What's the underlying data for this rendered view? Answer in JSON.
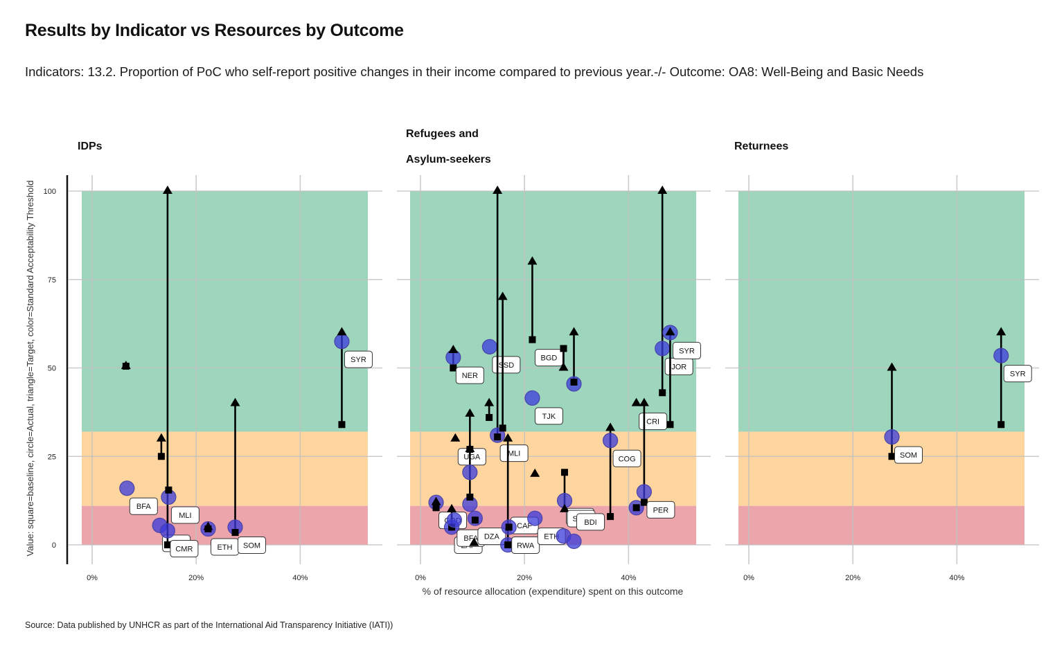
{
  "title": "Results  by Indicator  vs Resources  by Outcome",
  "subtitle": "Indicators: 13.2. Proportion of PoC who self-report positive changes in their income compared to previous year.-/- Outcome: OA8: Well-Being and Basic Needs",
  "source": "Source: Data published by UNHCR as part of the International Aid Transparency Initiative (IATI))",
  "colors": {
    "green": "#9dd6bc",
    "orange": "#fed59e",
    "red": "#eba5ab",
    "point": "#3a3adb",
    "grid": "#c2c2c2"
  },
  "chart_data": {
    "type": "scatter",
    "xlabel": "% of resource allocation (expenditure) spent on this outcome",
    "ylabel": "Value: square=baseline, circle=Actual, triangle=Target, color=Standard Acceptability Threshold",
    "xlim": [
      -2,
      53
    ],
    "ylim": [
      0,
      100
    ],
    "x_ticks": [
      0,
      20,
      40
    ],
    "x_tick_labels": [
      "0%",
      "20%",
      "40%"
    ],
    "y_ticks": [
      0,
      25,
      50,
      75,
      100
    ],
    "thresholds": {
      "red": [
        0,
        11
      ],
      "orange": [
        11,
        32
      ],
      "green": [
        32,
        100
      ]
    },
    "panels": [
      {
        "name": "IDPs",
        "title_lines": [
          "IDPs"
        ],
        "points": [
          {
            "code": "",
            "x": 6.5,
            "baseline": 50.5,
            "actual": null,
            "target": 50.5
          },
          {
            "code": "BFA",
            "x": 6.7,
            "baseline": null,
            "actual": 16,
            "target": null
          },
          {
            "code": "",
            "x": 13.3,
            "baseline": 25,
            "actual": null,
            "target": 30
          },
          {
            "code": "SSD",
            "x": 13,
            "baseline": null,
            "actual": 5.5,
            "target": null
          },
          {
            "code": "CMR",
            "x": 14.5,
            "baseline": 0,
            "actual": 4,
            "target": 100
          },
          {
            "code": "MLI",
            "x": 14.7,
            "baseline": 15.5,
            "actual": 13.5,
            "target": null
          },
          {
            "code": "ETH",
            "x": 22.3,
            "baseline": 4.5,
            "actual": 4.5,
            "target": 5
          },
          {
            "code": "SOM",
            "x": 27.5,
            "baseline": 3.5,
            "actual": 5,
            "target": 40
          },
          {
            "code": "SYR",
            "x": 48,
            "baseline": 34,
            "actual": 57.5,
            "target": 60
          }
        ]
      },
      {
        "name": "Refugees and Asylum-seekers",
        "title_lines": [
          "Refugees and",
          "Asylum-seekers"
        ],
        "points": [
          {
            "code": "COD",
            "x": 3,
            "baseline": 10.5,
            "actual": 12,
            "target": 12
          },
          {
            "code": "ZAF",
            "x": 6,
            "baseline": 5,
            "actual": 5,
            "target": 10
          },
          {
            "code": "BFA",
            "x": 6.5,
            "baseline": null,
            "actual": 7,
            "target": null
          },
          {
            "code": "UGA",
            "x": 6.7,
            "baseline": null,
            "actual": null,
            "target": 30
          },
          {
            "code": "NER",
            "x": 6.3,
            "baseline": 50,
            "actual": 53,
            "target": 55
          },
          {
            "code": "",
            "x": 9.5,
            "baseline": 13.5,
            "actual": 11.5,
            "target": 37
          },
          {
            "code": "",
            "x": 9.5,
            "baseline": 27,
            "actual": 20.5,
            "target": 27
          },
          {
            "code": "DZA",
            "x": 10.5,
            "baseline": 7,
            "actual": 7.5,
            "target": null
          },
          {
            "code": "",
            "x": 10.3,
            "baseline": null,
            "actual": null,
            "target": 0.5
          },
          {
            "code": "",
            "x": 13.2,
            "baseline": 36,
            "actual": null,
            "target": 40
          },
          {
            "code": "SSD",
            "x": 13.3,
            "baseline": null,
            "actual": 56,
            "target": null
          },
          {
            "code": "MLI",
            "x": 14.8,
            "baseline": 30.5,
            "actual": 31,
            "target": 100
          },
          {
            "code": "",
            "x": 15.8,
            "baseline": 33,
            "actual": null,
            "target": 70
          },
          {
            "code": "CAF",
            "x": 16.8,
            "baseline": 0,
            "actual": 0,
            "target": 30
          },
          {
            "code": "RWA",
            "x": 17,
            "baseline": 5,
            "actual": 5,
            "target": null
          },
          {
            "code": "BGD",
            "x": 21.5,
            "baseline": 58,
            "actual": null,
            "target": 80
          },
          {
            "code": "TJK",
            "x": 21.5,
            "baseline": null,
            "actual": 41.5,
            "target": null
          },
          {
            "code": "ETH",
            "x": 22,
            "baseline": null,
            "actual": 7.5,
            "target": 20
          },
          {
            "code": "NGA",
            "x": 27.5,
            "baseline": 55.5,
            "actual": 2.5,
            "target": 50
          },
          {
            "code": "SOM",
            "x": 27.7,
            "baseline": 20.5,
            "actual": 12.5,
            "target": 10
          },
          {
            "code": "",
            "x": 29.5,
            "baseline": 46,
            "actual": 45.5,
            "target": 60
          },
          {
            "code": "BDI",
            "x": 29.5,
            "baseline": null,
            "actual": 1,
            "target": null
          },
          {
            "code": "COG",
            "x": 36.5,
            "baseline": 8,
            "actual": 29.5,
            "target": 33
          },
          {
            "code": "CRI",
            "x": 41.5,
            "baseline": null,
            "actual": null,
            "target": 40
          },
          {
            "code": "",
            "x": 41.5,
            "baseline": 10.5,
            "actual": 10.5,
            "target": null
          },
          {
            "code": "PER",
            "x": 43,
            "baseline": 12,
            "actual": 15,
            "target": 40
          },
          {
            "code": "JOR",
            "x": 46.5,
            "baseline": 43,
            "actual": 55.5,
            "target": 100
          },
          {
            "code": "SYR",
            "x": 48,
            "baseline": 34,
            "actual": 60,
            "target": 60
          }
        ]
      },
      {
        "name": "Returnees",
        "title_lines": [
          "Returnees"
        ],
        "points": [
          {
            "code": "SOM",
            "x": 27.5,
            "baseline": 25,
            "actual": 30.5,
            "target": 50
          },
          {
            "code": "SYR",
            "x": 48.5,
            "baseline": 34,
            "actual": 53.5,
            "target": 60
          }
        ]
      }
    ]
  }
}
